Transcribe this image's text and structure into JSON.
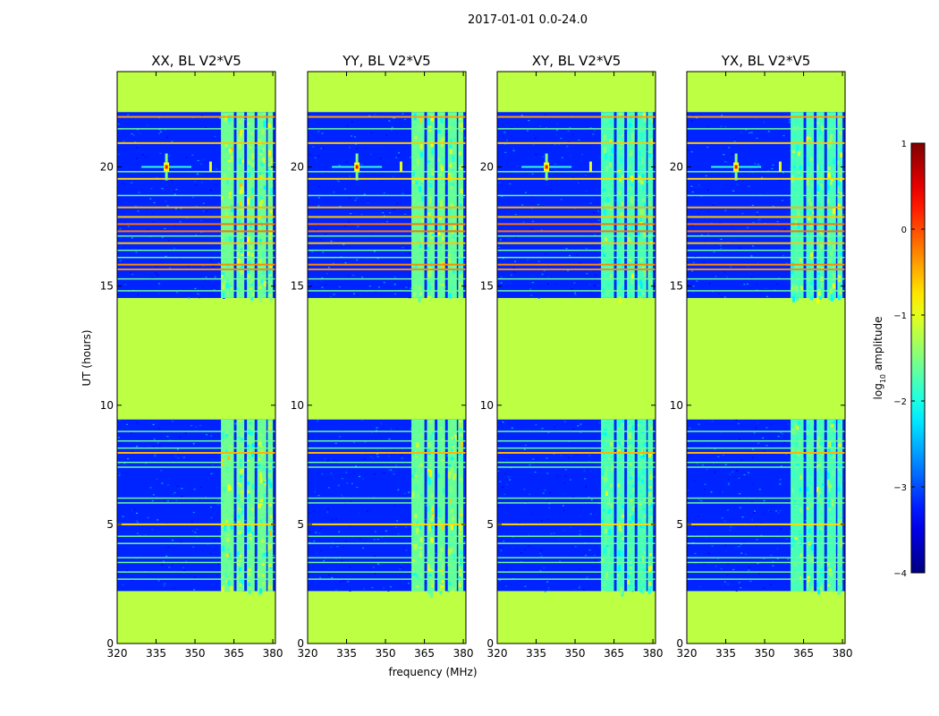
{
  "figure_title": "2017-01-01 0.0-24.0",
  "chart_data": {
    "type": "heatmap",
    "title": "2017-01-01 0.0-24.0",
    "xlabel": "frequency (MHz)",
    "ylabel": "UT (hours)",
    "xlim": [
      320,
      381
    ],
    "ylim": [
      0,
      24
    ],
    "xticks": [
      320,
      335,
      350,
      365,
      380
    ],
    "yticks": [
      0,
      5,
      10,
      15,
      20
    ],
    "panels": [
      {
        "title": "XX, BL V2*V5",
        "pol": "XX",
        "rfi_level": 1.0
      },
      {
        "title": "YY, BL V2*V5",
        "pol": "YY",
        "rfi_level": 0.95
      },
      {
        "title": "XY, BL V2*V5",
        "pol": "XY",
        "rfi_level": 0.7
      },
      {
        "title": "YX, BL V2*V5",
        "pol": "YX",
        "rfi_level": 0.7
      }
    ],
    "flagged_value": -1.2,
    "background_value": -3.2,
    "flagged_time_ranges": [
      [
        0,
        2.2
      ],
      [
        9.4,
        14.5
      ],
      [
        22.3,
        24
      ]
    ],
    "observed_time_ranges": [
      [
        2.2,
        9.4
      ],
      [
        14.5,
        22.3
      ]
    ],
    "rfi_bands_mhz": [
      [
        360,
        365
      ],
      [
        366,
        369
      ],
      [
        370,
        373
      ],
      [
        374,
        377.5
      ],
      [
        378,
        380
      ]
    ],
    "rfi_band_value": -1.6,
    "rfi_band_peak_value": -0.9,
    "bright_sources": [
      {
        "freq": 339,
        "time": 20.0,
        "value": 0.3
      },
      {
        "freq": 356,
        "time": 20.0,
        "value": -1.0
      }
    ],
    "hot_time_rows": [
      {
        "time": 15.7,
        "value": -0.3
      },
      {
        "time": 15.9,
        "value": -0.3
      },
      {
        "time": 16.8,
        "value": -0.6
      },
      {
        "time": 17.3,
        "value": -0.2
      },
      {
        "time": 17.6,
        "value": -0.2
      },
      {
        "time": 17.9,
        "value": -0.6
      },
      {
        "time": 18.3,
        "value": -0.5
      },
      {
        "time": 19.5,
        "value": -0.7
      },
      {
        "time": 21.0,
        "value": -0.6
      },
      {
        "time": 22.1,
        "value": -0.4
      },
      {
        "time": 5.0,
        "value": -0.7
      },
      {
        "time": 8.0,
        "value": -0.5
      }
    ],
    "warm_time_rows": [
      14.8,
      15.3,
      16.2,
      16.5,
      17.1,
      18.8,
      19.8,
      21.6,
      2.7,
      3.0,
      3.4,
      3.6,
      4.2,
      4.5,
      5.9,
      6.1,
      7.4,
      7.6,
      8.2,
      8.5,
      8.9
    ],
    "colorbar": {
      "label": "log₁₀ amplitude",
      "label_base": "log",
      "label_sub": "10",
      "label_rest": " amplitude",
      "min": -4,
      "max": 1,
      "ticks": [
        1,
        0,
        -1,
        -2,
        -3,
        -4
      ],
      "tick_labels": [
        "1",
        "0",
        "−1",
        "−2",
        "−3",
        "−4"
      ],
      "colormap": "jet"
    }
  }
}
